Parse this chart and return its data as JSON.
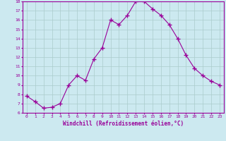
{
  "x": [
    0,
    1,
    2,
    3,
    4,
    5,
    6,
    7,
    8,
    9,
    10,
    11,
    12,
    13,
    14,
    15,
    16,
    17,
    18,
    19,
    20,
    21,
    22,
    23
  ],
  "y": [
    7.8,
    7.2,
    6.5,
    6.6,
    7.0,
    9.0,
    10.0,
    9.5,
    11.8,
    13.0,
    16.0,
    15.5,
    16.5,
    18.0,
    18.0,
    17.2,
    16.5,
    15.5,
    14.0,
    12.2,
    10.8,
    10.0,
    9.4,
    9.0
  ],
  "xlabel": "Windchill (Refroidissement éolien,°C)",
  "ylim": [
    6,
    18
  ],
  "xlim": [
    -0.5,
    23.5
  ],
  "yticks": [
    6,
    7,
    8,
    9,
    10,
    11,
    12,
    13,
    14,
    15,
    16,
    17,
    18
  ],
  "xticks": [
    0,
    1,
    2,
    3,
    4,
    5,
    6,
    7,
    8,
    9,
    10,
    11,
    12,
    13,
    14,
    15,
    16,
    17,
    18,
    19,
    20,
    21,
    22,
    23
  ],
  "line_color": "#990099",
  "marker_color": "#990099",
  "bg_color": "#cce9f0",
  "grid_color": "#aacccc",
  "xlabel_color": "#990099",
  "tick_color": "#990099"
}
